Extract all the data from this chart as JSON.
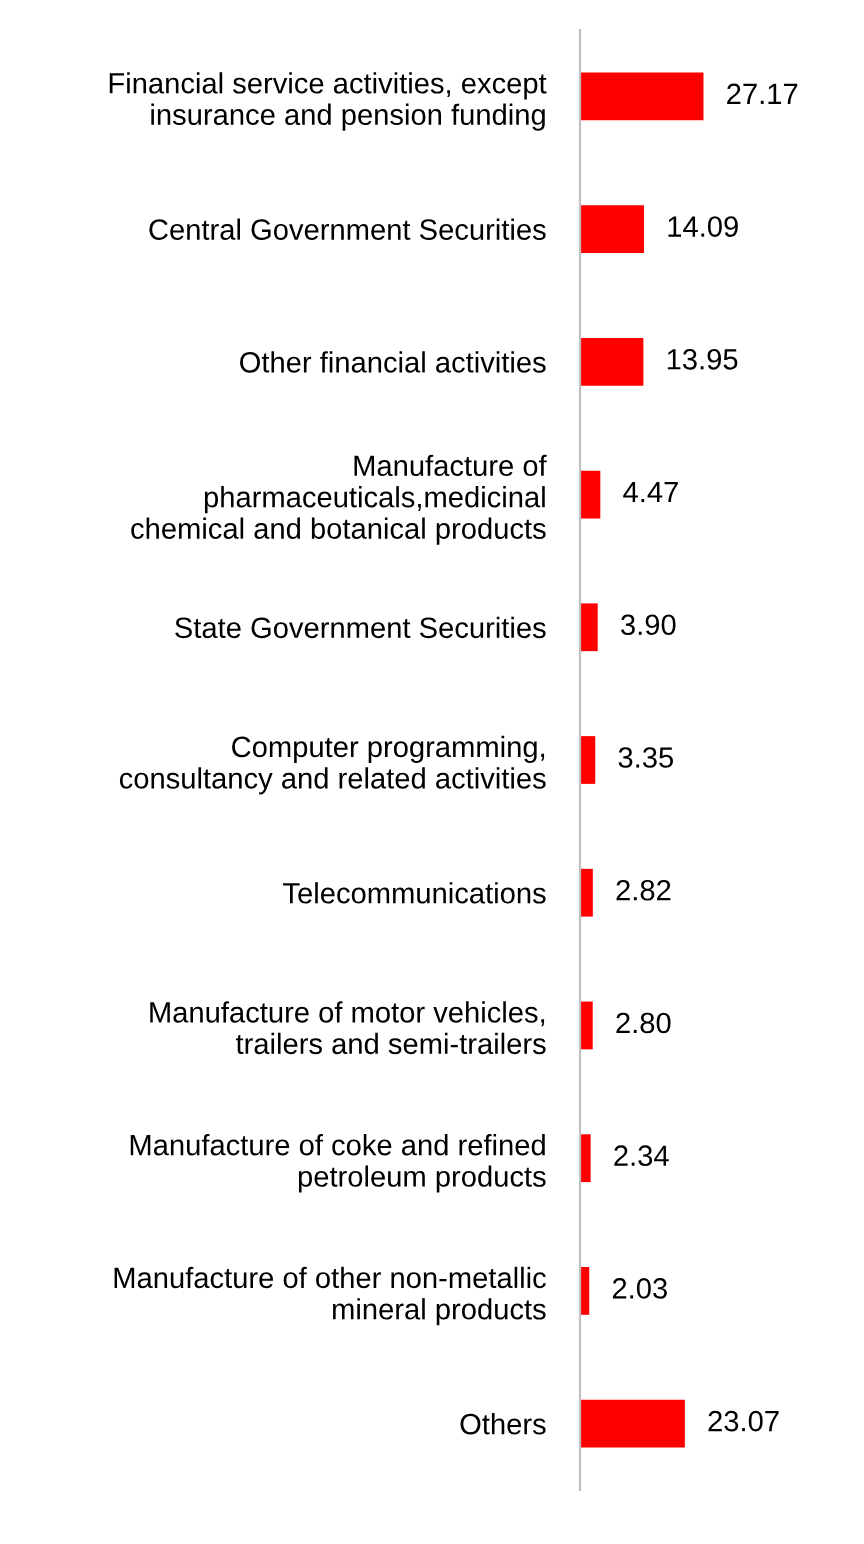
{
  "chart_data": {
    "type": "bar",
    "orientation": "horizontal",
    "categories": [
      "Financial service activities, except\ninsurance and pension funding",
      "Central Government Securities",
      "Other financial activities",
      "Manufacture of\npharmaceuticals,medicinal\nchemical and botanical products",
      "State Government Securities",
      "Computer programming,\nconsultancy and related activities",
      "Telecommunications",
      "Manufacture of motor vehicles,\ntrailers and semi-trailers",
      "Manufacture of coke and refined\npetroleum products",
      "Manufacture of other non-metallic\nmineral products",
      "Others"
    ],
    "values": [
      27.17,
      14.09,
      13.95,
      4.47,
      3.9,
      3.35,
      2.82,
      2.8,
      2.34,
      2.03,
      23.07
    ],
    "value_labels": [
      "27.17",
      "14.09",
      "13.95",
      "4.47",
      "3.90",
      "3.35",
      "2.82",
      "2.80",
      "2.34",
      "2.03",
      "23.07"
    ],
    "color": "#ff0000",
    "grid": false,
    "legend": false
  }
}
